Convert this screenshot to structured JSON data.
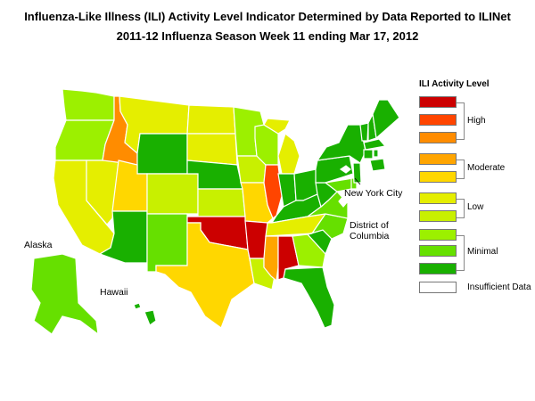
{
  "title": {
    "line1": "Influenza-Like Illness (ILI) Activity Level Indicator Determined by Data Reported to ILINet",
    "line2": "2011-12  Influenza Season Week  11 ending Mar 17, 2012"
  },
  "legend": {
    "title": "ILI Activity Level",
    "levels": [
      {
        "level": 10,
        "color": "#cc0000"
      },
      {
        "level": 9,
        "color": "#ff4500"
      },
      {
        "level": 8,
        "color": "#ff8c00"
      },
      {
        "level": 7,
        "color": "#ffa500"
      },
      {
        "level": 6,
        "color": "#ffd700"
      },
      {
        "level": 5,
        "color": "#e5ee00"
      },
      {
        "level": 4,
        "color": "#c8f000"
      },
      {
        "level": 3,
        "color": "#9cf000"
      },
      {
        "level": 2,
        "color": "#66e000"
      },
      {
        "level": 1,
        "color": "#19b000"
      },
      {
        "level": 0,
        "color": "#ffffff"
      }
    ],
    "groups": [
      "High",
      "Moderate",
      "Low",
      "Minimal",
      "Insufficient Data"
    ]
  },
  "map_labels": {
    "nyc": "New York City",
    "dc_line1": "District of",
    "dc_line2": "Columbia",
    "alaska": "Alaska",
    "hawaii": "Hawaii"
  },
  "states": {
    "WA": 3,
    "OR": 3,
    "CA": 5,
    "NV": 5,
    "ID": 8,
    "MT": 5,
    "WY": 1,
    "UT": 6,
    "AZ": 1,
    "CO": 4,
    "NM": 2,
    "ND": 5,
    "SD": 5,
    "NE": 1,
    "KS": 4,
    "OK": 10,
    "TX": 6,
    "MN": 3,
    "IA": 4,
    "MO": 6,
    "AR": 10,
    "LA": 4,
    "WI": 3,
    "IL": 9,
    "MI": 5,
    "IN": 1,
    "OH": 1,
    "KY": 1,
    "TN": 5,
    "MS": 7,
    "AL": 10,
    "GA": 3,
    "FL": 1,
    "SC": 1,
    "NC": 2,
    "VA": 2,
    "WV": 1,
    "PA": 1,
    "NY": 1,
    "VT": 1,
    "NH": 1,
    "ME": 1,
    "MA": 1,
    "CT": 1,
    "RI": 1,
    "NJ": 1,
    "DE": 2,
    "MD": 2,
    "AK": 2,
    "HI": 1,
    "NYC": 0,
    "DC": 0
  }
}
